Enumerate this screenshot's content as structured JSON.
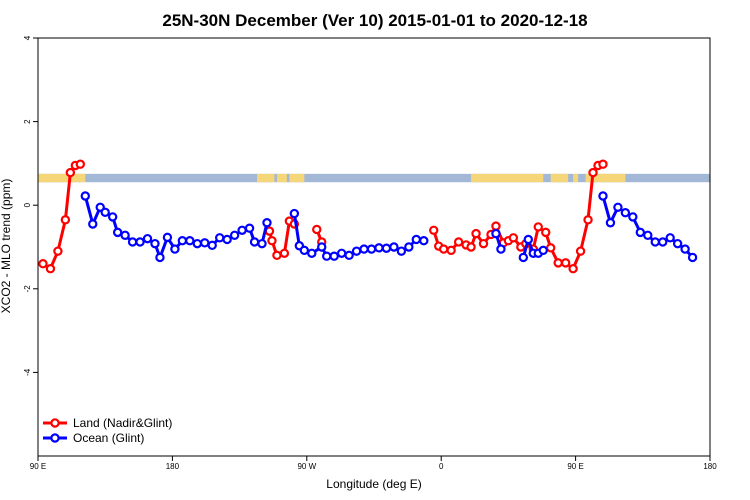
{
  "chart_data": {
    "type": "line",
    "title": "25N-30N December (Ver 10)   2015-01-01 to 2020-12-18",
    "xlabel": "Longitude (deg E)",
    "ylabel": "XCO2 - MLO trend (ppm)",
    "xlim": [
      -90,
      180
    ],
    "ylim": [
      -6,
      4
    ],
    "xticks": [
      {
        "value": -90,
        "label": "90 E"
      },
      {
        "value": -36,
        "label": "180"
      },
      {
        "value": 18,
        "label": "90 W"
      },
      {
        "value": 72,
        "label": "0"
      },
      {
        "value": 126,
        "label": "90 E"
      },
      {
        "value": 180,
        "label": "180"
      }
    ],
    "yticks": [
      {
        "value": 4,
        "label": "4"
      },
      {
        "value": 2,
        "label": "2"
      },
      {
        "value": 0,
        "label": "0"
      },
      {
        "value": -2,
        "label": "-2"
      },
      {
        "value": -4,
        "label": "-4"
      }
    ],
    "land_ocean_strip": {
      "y_range": [
        0.55,
        0.75
      ],
      "ocean_color": "#a3b8d6",
      "land_color": "#f5d77a",
      "land_segments": [
        [
          -90,
          -71
        ],
        [
          -2,
          5
        ],
        [
          6,
          10
        ],
        [
          11,
          17
        ],
        [
          84,
          113
        ],
        [
          116,
          123
        ],
        [
          125,
          127
        ],
        [
          130,
          146
        ]
      ]
    },
    "series": [
      {
        "name": "Land (Nadir&Glint)",
        "color": "#ff0000",
        "segments": [
          [
            [
              -88,
              -1.4
            ],
            [
              -85,
              -1.52
            ],
            [
              -82,
              -1.1
            ],
            [
              -79,
              -0.35
            ],
            [
              -77,
              0.78
            ],
            [
              -75,
              0.95
            ],
            [
              -73,
              0.98
            ]
          ],
          [
            [
              3,
              -0.62
            ],
            [
              4,
              -0.85
            ],
            [
              6,
              -1.2
            ],
            [
              9,
              -1.15
            ],
            [
              11,
              -0.38
            ],
            [
              13,
              -0.45
            ]
          ],
          [
            [
              22,
              -0.58
            ],
            [
              24,
              -0.88
            ]
          ],
          [
            [
              69,
              -0.6
            ],
            [
              71,
              -0.98
            ],
            [
              73,
              -1.05
            ],
            [
              76,
              -1.08
            ],
            [
              79,
              -0.88
            ],
            [
              82,
              -0.95
            ],
            [
              84,
              -1.0
            ],
            [
              86,
              -0.68
            ],
            [
              89,
              -0.92
            ],
            [
              92,
              -0.7
            ],
            [
              94,
              -0.5
            ],
            [
              97,
              -0.9
            ],
            [
              99,
              -0.85
            ],
            [
              101,
              -0.78
            ],
            [
              104,
              -1.0
            ],
            [
              106,
              -0.92
            ],
            [
              109,
              -1.05
            ],
            [
              111,
              -0.52
            ],
            [
              114,
              -0.65
            ],
            [
              116,
              -1.02
            ],
            [
              119,
              -1.38
            ],
            [
              122,
              -1.38
            ],
            [
              125,
              -1.52
            ],
            [
              128,
              -1.1
            ],
            [
              131,
              -0.35
            ],
            [
              133,
              0.78
            ],
            [
              135,
              0.95
            ],
            [
              137,
              0.98
            ]
          ]
        ]
      },
      {
        "name": "Ocean (Glint)",
        "color": "#0000ff",
        "segments": [
          [
            [
              -71,
              0.22
            ],
            [
              -68,
              -0.45
            ],
            [
              -65,
              -0.05
            ],
            [
              -63,
              -0.17
            ],
            [
              -60,
              -0.28
            ],
            [
              -58,
              -0.65
            ],
            [
              -55,
              -0.72
            ],
            [
              -52,
              -0.88
            ],
            [
              -49,
              -0.88
            ],
            [
              -46,
              -0.8
            ],
            [
              -43,
              -0.92
            ],
            [
              -41,
              -1.25
            ],
            [
              -38,
              -0.77
            ],
            [
              -35,
              -1.05
            ],
            [
              -32,
              -0.85
            ],
            [
              -29,
              -0.85
            ],
            [
              -26,
              -0.92
            ],
            [
              -23,
              -0.9
            ],
            [
              -20,
              -0.96
            ],
            [
              -17,
              -0.78
            ],
            [
              -14,
              -0.82
            ],
            [
              -11,
              -0.72
            ],
            [
              -8,
              -0.6
            ],
            [
              -5,
              -0.55
            ],
            [
              -3,
              -0.88
            ],
            [
              0,
              -0.92
            ],
            [
              2,
              -0.42
            ]
          ],
          [
            [
              13,
              -0.2
            ],
            [
              15,
              -0.97
            ],
            [
              17,
              -1.08
            ],
            [
              20,
              -1.15
            ],
            [
              24,
              -1.0
            ],
            [
              26,
              -1.22
            ],
            [
              29,
              -1.22
            ],
            [
              32,
              -1.15
            ],
            [
              35,
              -1.2
            ],
            [
              38,
              -1.1
            ],
            [
              41,
              -1.05
            ],
            [
              44,
              -1.05
            ],
            [
              47,
              -1.02
            ],
            [
              50,
              -1.03
            ],
            [
              53,
              -1.0
            ],
            [
              56,
              -1.1
            ],
            [
              59,
              -1.0
            ],
            [
              62,
              -0.82
            ],
            [
              65,
              -0.85
            ]
          ],
          [
            [
              94,
              -0.68
            ],
            [
              96,
              -1.05
            ]
          ],
          [
            [
              105,
              -1.25
            ],
            [
              107,
              -0.82
            ],
            [
              109,
              -1.15
            ],
            [
              111,
              -1.15
            ],
            [
              113,
              -1.08
            ]
          ],
          [
            [
              137,
              0.22
            ],
            [
              140,
              -0.42
            ],
            [
              143,
              -0.05
            ],
            [
              146,
              -0.18
            ],
            [
              149,
              -0.28
            ],
            [
              152,
              -0.65
            ],
            [
              155,
              -0.72
            ],
            [
              158,
              -0.88
            ],
            [
              161,
              -0.88
            ],
            [
              164,
              -0.78
            ],
            [
              167,
              -0.92
            ],
            [
              170,
              -1.05
            ],
            [
              173,
              -1.25
            ]
          ]
        ]
      }
    ],
    "legend": {
      "position": "bottom-left",
      "entries": [
        "Land (Nadir&Glint)",
        "Ocean (Glint)"
      ]
    }
  }
}
